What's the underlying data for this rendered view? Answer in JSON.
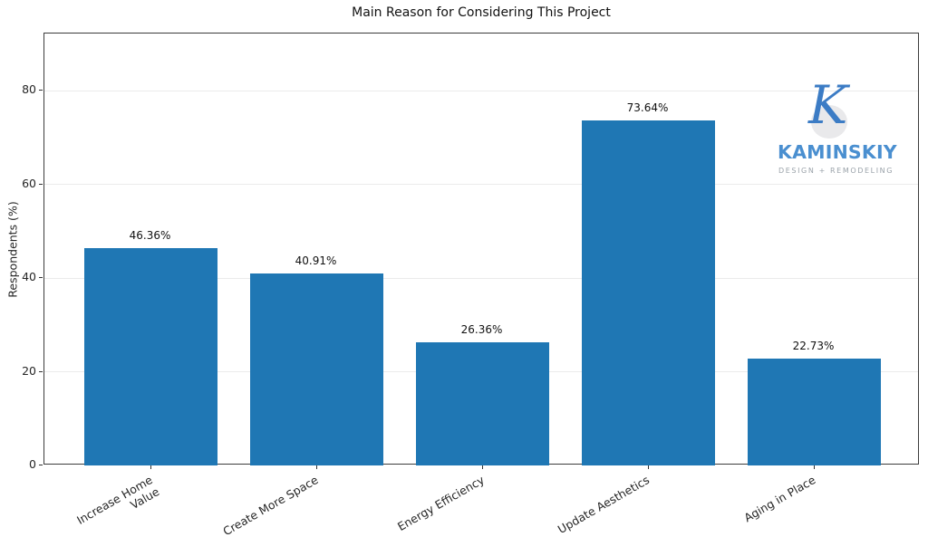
{
  "chart_data": {
    "type": "bar",
    "title": "Main Reason for Considering This Project",
    "xlabel": "",
    "ylabel": "Respondents (%)",
    "categories": [
      "Increase Home\nValue",
      "Create More Space",
      "Energy Efficiency",
      "Update Aesthetics",
      "Aging in Place"
    ],
    "values": [
      46.36,
      40.91,
      26.36,
      73.64,
      22.73
    ],
    "value_labels": [
      "46.36%",
      "40.91%",
      "26.36%",
      "73.64%",
      "22.73%"
    ],
    "yticks": [
      0,
      20,
      40,
      60,
      80
    ],
    "ylim": [
      0,
      92.2
    ],
    "grid": true,
    "legend_position": "none",
    "bar_color": "#1f77b4",
    "xtick_rotation_deg": 30
  },
  "logo": {
    "monogram": "K",
    "name": "KAMINSKIY",
    "tagline": "DESIGN + REMODELING",
    "monogram_color": "#3c7cc5",
    "circle_color": "#e9e9eb",
    "name_color": "#4a8fd0",
    "tagline_color": "#9aa2a9"
  }
}
